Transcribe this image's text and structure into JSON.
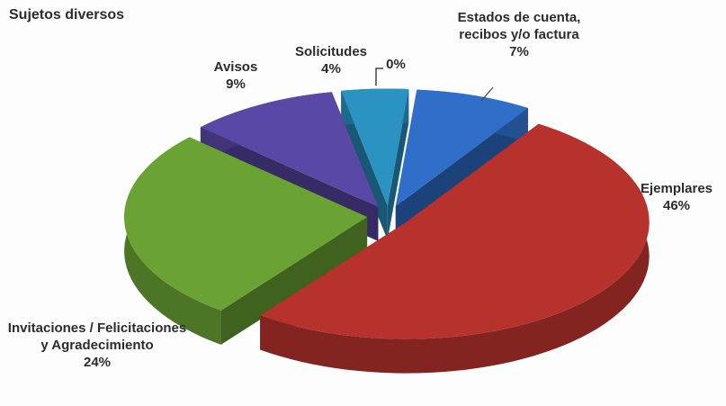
{
  "chart_data": {
    "type": "pie3d",
    "title": "Sujetos diversos",
    "categories": [
      "Estados de cuenta, recibos y/o factura",
      "Ejemplares",
      "Invitaciones / Felicitaciones y Agradecimiento",
      "Avisos",
      "Solicitudes",
      null
    ],
    "values": [
      7,
      46,
      24,
      9,
      4,
      0
    ],
    "value_labels": [
      "7%",
      "46%",
      "24%",
      "9%",
      "4%",
      "0%"
    ],
    "colors": [
      "#2f6fca",
      "#b8322d",
      "#6aa333",
      "#5a48a6",
      "#2a93c2",
      "#2f6fca"
    ]
  }
}
